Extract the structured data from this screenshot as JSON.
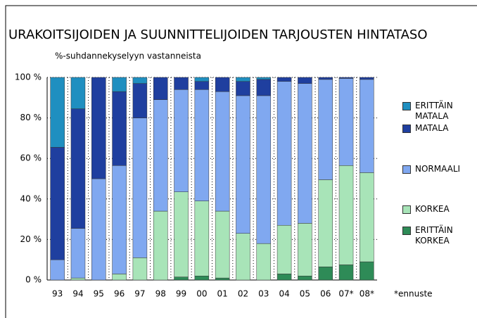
{
  "chart_data": {
    "type": "stacked_bar",
    "title": "URAKOITSIJOIDEN JA SUUNNITTELIJOIDEN TARJOUSTEN HINTATASO",
    "subtitle": "%-suhdannekyselyyn vastanneista",
    "note": "*ennuste",
    "categories": [
      "93",
      "94",
      "95",
      "96",
      "97",
      "98",
      "99",
      "00",
      "01",
      "02",
      "03",
      "04",
      "05",
      "06",
      "07*",
      "08*"
    ],
    "series": [
      {
        "name": "ERITTÄIN KORKEA",
        "color": "#2e8b57",
        "values": [
          0,
          0,
          0,
          0,
          0,
          0,
          1.5,
          2,
          1,
          0,
          0,
          3,
          2,
          6.5,
          7.5,
          9
        ]
      },
      {
        "name": "KORKEA",
        "color": "#a8e4b8",
        "values": [
          0,
          1,
          0,
          3,
          11,
          34,
          42,
          37,
          33,
          23,
          18,
          24,
          26,
          43,
          49,
          44
        ]
      },
      {
        "name": "NORMAALI",
        "color": "#80a8f0",
        "values": [
          10,
          24.5,
          50,
          53.5,
          69,
          55,
          50.5,
          55,
          59,
          68,
          73,
          71,
          69,
          49.5,
          43,
          46
        ]
      },
      {
        "name": "MATALA",
        "color": "#1f3f9f",
        "values": [
          55.5,
          59,
          50,
          36.5,
          17,
          11,
          6,
          4,
          7,
          7,
          8,
          2,
          3,
          1,
          0.5,
          1
        ]
      },
      {
        "name": "ERITTÄIN MATALA",
        "color": "#1f8fc0",
        "values": [
          34.5,
          15.5,
          0,
          7,
          3,
          0,
          0,
          2,
          0,
          2,
          1,
          0,
          0,
          0,
          0,
          0
        ]
      }
    ],
    "ylim": [
      0,
      100
    ],
    "yticks": [
      {
        "value": 0,
        "label": "0 %"
      },
      {
        "value": 20,
        "label": "20 %"
      },
      {
        "value": 40,
        "label": "40 %"
      },
      {
        "value": 60,
        "label": "60 %"
      },
      {
        "value": 80,
        "label": "80 %"
      },
      {
        "value": 100,
        "label": "100 %"
      }
    ],
    "grid": true
  }
}
